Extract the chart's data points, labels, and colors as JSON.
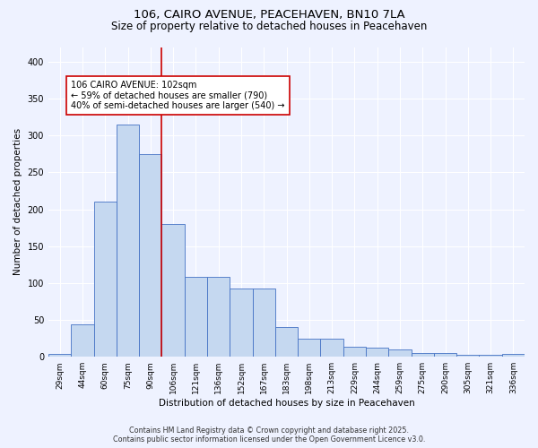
{
  "title": "106, CAIRO AVENUE, PEACEHAVEN, BN10 7LA",
  "subtitle": "Size of property relative to detached houses in Peacehaven",
  "xlabel": "Distribution of detached houses by size in Peacehaven",
  "ylabel": "Number of detached properties",
  "categories": [
    "29sqm",
    "44sqm",
    "60sqm",
    "75sqm",
    "90sqm",
    "106sqm",
    "121sqm",
    "136sqm",
    "152sqm",
    "167sqm",
    "183sqm",
    "198sqm",
    "213sqm",
    "229sqm",
    "244sqm",
    "259sqm",
    "275sqm",
    "290sqm",
    "305sqm",
    "321sqm",
    "336sqm"
  ],
  "values": [
    4,
    44,
    210,
    315,
    275,
    180,
    108,
    108,
    92,
    92,
    40,
    24,
    24,
    14,
    12,
    10,
    5,
    5,
    3,
    3,
    4
  ],
  "bar_color": "#c5d8f0",
  "bar_edge_color": "#4472c4",
  "pct_smaller": 59,
  "num_smaller": 790,
  "pct_larger_semi": 40,
  "num_larger_semi": 540,
  "vline_x_index": 5,
  "vline_color": "#cc0000",
  "annotation_box_color": "#cc0000",
  "ylim": [
    0,
    420
  ],
  "yticks": [
    0,
    50,
    100,
    150,
    200,
    250,
    300,
    350,
    400
  ],
  "footnote1": "Contains HM Land Registry data © Crown copyright and database right 2025.",
  "footnote2": "Contains public sector information licensed under the Open Government Licence v3.0.",
  "background_color": "#eef2ff",
  "grid_color": "#ffffff",
  "title_fontsize": 9.5,
  "subtitle_fontsize": 8.5,
  "axis_fontsize": 7.5,
  "tick_fontsize": 6.5,
  "footnote_fontsize": 5.8,
  "ann_fontsize": 7.0
}
